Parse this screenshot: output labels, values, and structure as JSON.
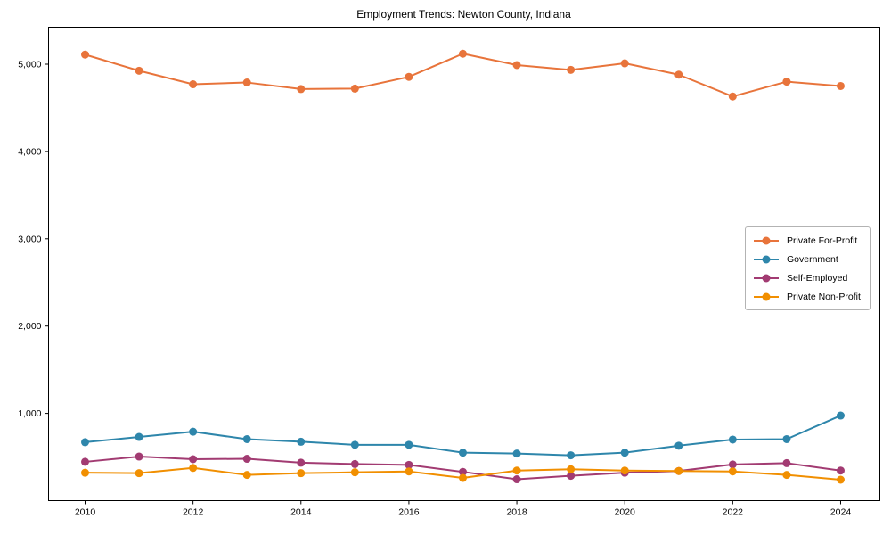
{
  "chart_data": {
    "type": "line",
    "title": "Employment Trends: Newton County, Indiana",
    "xlabel": "",
    "ylabel": "",
    "x": [
      2010,
      2011,
      2012,
      2013,
      2014,
      2015,
      2016,
      2017,
      2018,
      2019,
      2020,
      2021,
      2022,
      2023,
      2024
    ],
    "xtick_labels": [
      "2010",
      "2012",
      "2014",
      "2016",
      "2018",
      "2020",
      "2022",
      "2024"
    ],
    "xticks": [
      2010,
      2012,
      2014,
      2016,
      2018,
      2020,
      2022,
      2024
    ],
    "yticks": [
      1000,
      2000,
      3000,
      4000,
      5000
    ],
    "ytick_labels": [
      "1,000",
      "2,000",
      "3,000",
      "4,000",
      "5,000"
    ],
    "ylim": [
      0,
      5430
    ],
    "xlim": [
      2009.33,
      2024.72
    ],
    "grid": false,
    "legend_position": "right-middle",
    "marker": "circle",
    "series": [
      {
        "name": "Private For-Profit",
        "color": "#E8743B",
        "values": [
          5110,
          4925,
          4770,
          4790,
          4715,
          4720,
          4855,
          5120,
          4990,
          4935,
          5010,
          4880,
          4630,
          4800,
          4750
        ]
      },
      {
        "name": "Government",
        "color": "#2E86AB",
        "values": [
          670,
          730,
          790,
          705,
          675,
          640,
          640,
          550,
          540,
          520,
          550,
          630,
          700,
          705,
          975
        ]
      },
      {
        "name": "Self-Employed",
        "color": "#A23B72",
        "values": [
          445,
          505,
          475,
          480,
          435,
          420,
          410,
          330,
          245,
          285,
          320,
          340,
          415,
          430,
          345
        ]
      },
      {
        "name": "Private Non-Profit",
        "color": "#F18F01",
        "values": [
          320,
          315,
          375,
          295,
          315,
          325,
          335,
          260,
          345,
          360,
          345,
          340,
          335,
          295,
          240
        ]
      }
    ]
  }
}
